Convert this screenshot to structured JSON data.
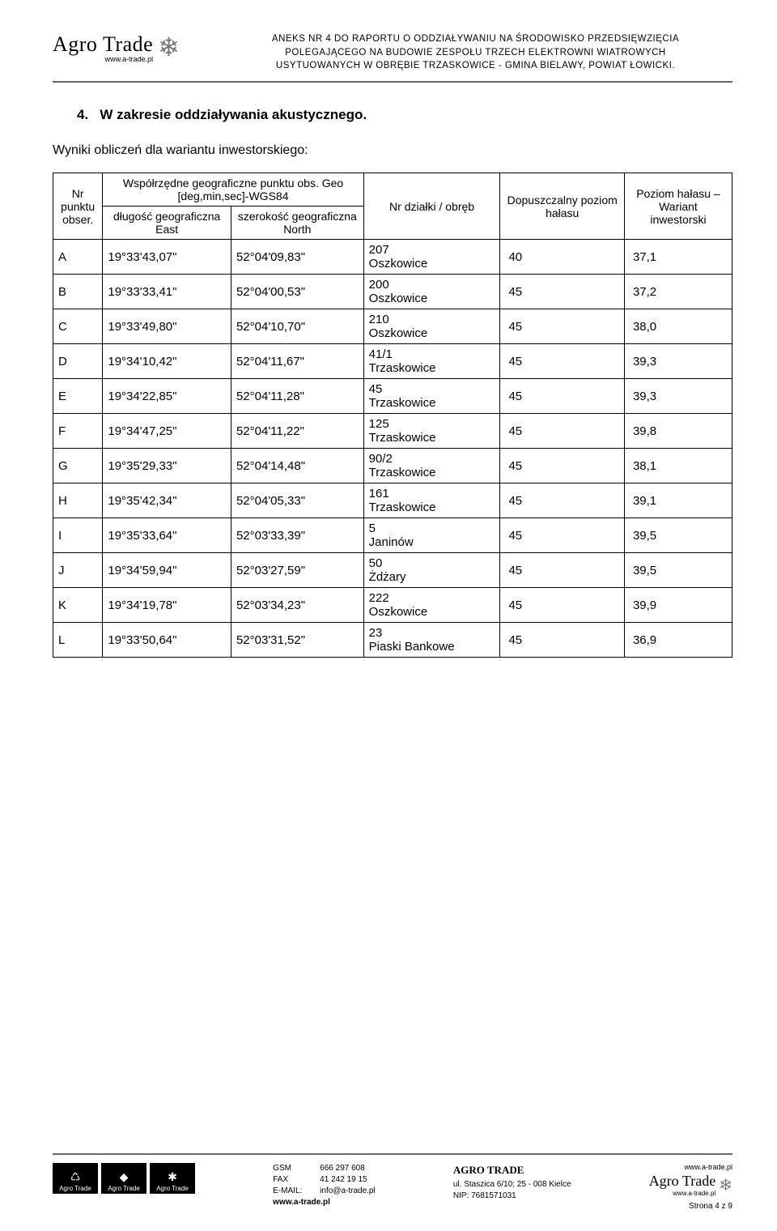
{
  "header": {
    "logo_text": "Agro Trade",
    "logo_url": "www.a-trade.pl",
    "title_line1": "ANEKS NR 4 DO RAPORTU O ODDZIAŁYWANIU NA ŚRODOWISKO PRZEDSIĘWZIĘCIA",
    "title_line2": "POLEGAJĄCEGO NA BUDOWIE ZESPOŁU TRZECH ELEKTROWNI WIATROWYCH",
    "title_line3": "USYTUOWANYCH W OBRĘBIE TRZASKOWICE - GMINA BIELAWY, POWIAT ŁOWICKI."
  },
  "section": {
    "number": "4.",
    "title": "W zakresie oddziaływania akustycznego.",
    "subtitle": "Wyniki obliczeń dla wariantu inwestorskiego:"
  },
  "table": {
    "head": {
      "col1": "Nr punktu obser.",
      "col2_top": "Współrzędne geograficzne punktu obs. Geo [deg,min,sec]-WGS84",
      "col2a": "długość geograficzna East",
      "col2b": "szerokość geograficzna North",
      "col3": "Nr działki / obręb",
      "col4": "Dopuszczalny poziom hałasu",
      "col5": "Poziom hałasu – Wariant inwestorski"
    },
    "rows": [
      {
        "id": "A",
        "lon": "19°33'43,07\"",
        "lat": "52°04'09,83\"",
        "parcel": "207\nOszkowice",
        "allow": "40",
        "level": "37,1"
      },
      {
        "id": "B",
        "lon": "19°33'33,41\"",
        "lat": "52°04'00,53\"",
        "parcel": "200\nOszkowice",
        "allow": "45",
        "level": "37,2"
      },
      {
        "id": "C",
        "lon": "19°33'49,80\"",
        "lat": "52°04'10,70\"",
        "parcel": "210\nOszkowice",
        "allow": "45",
        "level": "38,0"
      },
      {
        "id": "D",
        "lon": "19°34'10,42\"",
        "lat": "52°04'11,67\"",
        "parcel": "41/1\nTrzaskowice",
        "allow": "45",
        "level": "39,3"
      },
      {
        "id": "E",
        "lon": "19°34'22,85\"",
        "lat": "52°04'11,28\"",
        "parcel": "45\nTrzaskowice",
        "allow": "45",
        "level": "39,3"
      },
      {
        "id": "F",
        "lon": "19°34'47,25\"",
        "lat": "52°04'11,22\"",
        "parcel": "125\nTrzaskowice",
        "allow": "45",
        "level": "39,8"
      },
      {
        "id": "G",
        "lon": "19°35'29,33\"",
        "lat": "52°04'14,48\"",
        "parcel": "90/2\nTrzaskowice",
        "allow": "45",
        "level": "38,1"
      },
      {
        "id": "H",
        "lon": "19°35'42,34\"",
        "lat": "52°04'05,33\"",
        "parcel": "161\nTrzaskowice",
        "allow": "45",
        "level": "39,1"
      },
      {
        "id": "I",
        "lon": "19°35'33,64\"",
        "lat": "52°03'33,39\"",
        "parcel": "5\nJaninów",
        "allow": "45",
        "level": "39,5"
      },
      {
        "id": "J",
        "lon": "19°34'59,94\"",
        "lat": "52°03'27,59\"",
        "parcel": "50\nŻdżary",
        "allow": "45",
        "level": "39,5"
      },
      {
        "id": "K",
        "lon": "19°34'19,78\"",
        "lat": "52°03'34,23\"",
        "parcel": "222\nOszkowice",
        "allow": "45",
        "level": "39,9"
      },
      {
        "id": "L",
        "lon": "19°33'50,64\"",
        "lat": "52°03'31,52\"",
        "parcel": "23\nPiaski Bankowe",
        "allow": "45",
        "level": "36,9"
      }
    ]
  },
  "footer": {
    "card_label": "Agro Trade",
    "contact": {
      "gsm_lbl": "GSM",
      "gsm": "666 297 608",
      "fax_lbl": "FAX",
      "fax": "41 242 19 15",
      "email_lbl": "E-MAIL:",
      "email": "info@a-trade.pl",
      "www": "www.a-trade.pl"
    },
    "company": {
      "name": "AGRO TRADE",
      "addr": "ul. Staszica 6/10; 25 - 008 Kielce",
      "nip": "NIP: 7681571031"
    },
    "logo_small": {
      "top_url": "www.a-trade.pl",
      "text": "Agro Trade",
      "sub": "www.a-trade.pl",
      "page": "Strona 4 z 9"
    }
  }
}
